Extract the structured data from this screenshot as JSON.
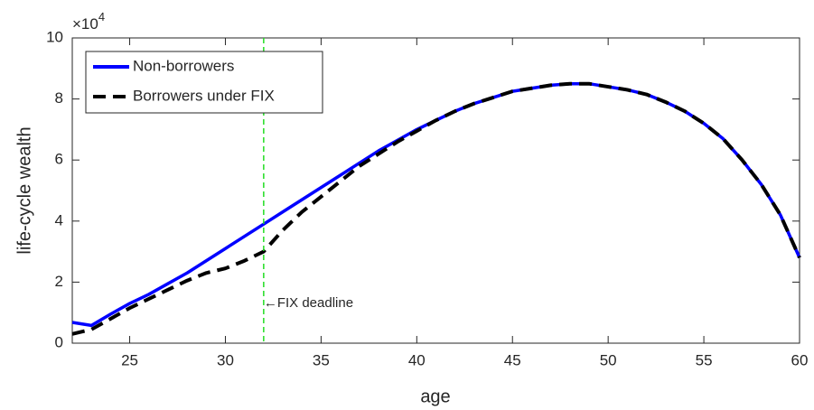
{
  "chart_data": {
    "type": "line",
    "x_label": "age",
    "y_label": "life-cycle wealth",
    "y_multiplier": {
      "base": "×10",
      "exponent": "4"
    },
    "x": [
      22,
      23,
      24,
      25,
      26,
      27,
      28,
      29,
      30,
      31,
      32,
      33,
      34,
      35,
      36,
      37,
      38,
      39,
      40,
      41,
      42,
      43,
      44,
      45,
      46,
      47,
      48,
      49,
      50,
      51,
      52,
      53,
      54,
      55,
      56,
      57,
      58,
      59,
      60
    ],
    "series": [
      {
        "name": "Non-borrowers",
        "color": "#0000ff",
        "dash": false,
        "values": [
          0.68,
          0.58,
          0.95,
          1.3,
          1.6,
          1.95,
          2.3,
          2.7,
          3.1,
          3.5,
          3.9,
          4.3,
          4.7,
          5.1,
          5.5,
          5.9,
          6.3,
          6.65,
          7.0,
          7.3,
          7.6,
          7.85,
          8.05,
          8.25,
          8.35,
          8.45,
          8.5,
          8.5,
          8.4,
          8.3,
          8.15,
          7.9,
          7.6,
          7.2,
          6.7,
          6.0,
          5.2,
          4.2,
          2.8
        ]
      },
      {
        "name": "Borrowers under FIX",
        "color": "#000000",
        "dash": true,
        "values": [
          0.3,
          0.45,
          0.8,
          1.15,
          1.45,
          1.75,
          2.05,
          2.3,
          2.45,
          2.7,
          3.0,
          3.7,
          4.3,
          4.8,
          5.3,
          5.8,
          6.2,
          6.6,
          6.95,
          7.3,
          7.6,
          7.85,
          8.05,
          8.25,
          8.35,
          8.45,
          8.5,
          8.5,
          8.4,
          8.3,
          8.15,
          7.9,
          7.6,
          7.2,
          6.7,
          6.0,
          5.2,
          4.2,
          2.8
        ]
      }
    ],
    "xlim": [
      22,
      60
    ],
    "xticks": [
      25,
      30,
      35,
      40,
      45,
      50,
      55,
      60
    ],
    "ylim": [
      0,
      10
    ],
    "yticks": [
      0,
      2,
      4,
      6,
      8,
      10
    ],
    "vline": {
      "x": 32,
      "color": "#22dd22"
    },
    "annotation": {
      "text": "←FIX deadline",
      "x": 32,
      "y": 1.3
    },
    "legend": "upper-left"
  }
}
